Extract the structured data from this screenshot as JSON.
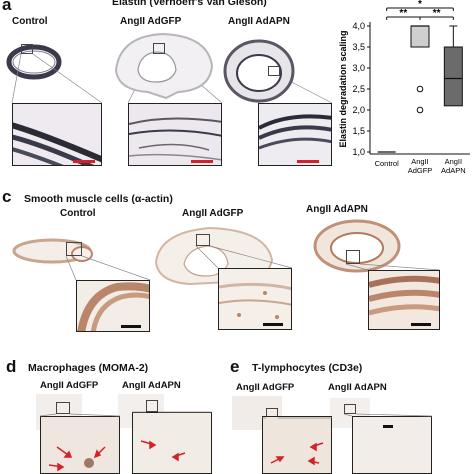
{
  "panel_a": {
    "letter": "a",
    "title": "Elastin (Verhoeff's Van Gieson)",
    "groups": [
      "Control",
      "AngII AdGFP",
      "AngII AdAPN"
    ]
  },
  "panel_c": {
    "letter": "c",
    "title": "Smooth muscle cells (α-actin)",
    "groups": [
      "Control",
      "AngII AdGFP",
      "AngII AdAPN"
    ]
  },
  "panel_d": {
    "letter": "d",
    "title": "Macrophages (MOMA-2)",
    "groups": [
      "AngII AdGFP",
      "AngII AdAPN"
    ]
  },
  "panel_e": {
    "letter": "e",
    "title": "T-lymphocytes  (CD3e)",
    "groups": [
      "AngII AdGFP",
      "AngII AdAPN"
    ]
  },
  "colors": {
    "elastin_stain": "#3a3a4a",
    "actin_stain": "#b9866b",
    "scale_red": "#d2232a",
    "box_light": "#cfcfcf",
    "box_dark": "#6b6b6b",
    "arrow": "#d2232a"
  },
  "chart_data": {
    "type": "box",
    "ylabel": "Elastin degradation scaling",
    "ylim": [
      1.0,
      4.0
    ],
    "yticks": [
      "1,0",
      "1,5",
      "2,0",
      "2,5",
      "3,0",
      "3,5",
      "4,0"
    ],
    "categories": [
      "Control",
      "AngII AdGFP",
      "AngII AdAPN"
    ],
    "boxes": [
      {
        "category": "Control",
        "min": 1.0,
        "q1": 1.0,
        "median": 1.0,
        "q3": 1.0,
        "max": 1.0,
        "outliers": []
      },
      {
        "category": "AngII AdGFP",
        "min": 3.5,
        "q1": 3.5,
        "median": 4.0,
        "q3": 4.0,
        "max": 4.0,
        "outliers": [
          2.5,
          2.0
        ]
      },
      {
        "category": "AngII AdAPN",
        "min": 2.1,
        "q1": 2.1,
        "median": 2.75,
        "q3": 3.5,
        "max": 4.0,
        "outliers": []
      }
    ],
    "significance": [
      {
        "from": "Control",
        "to": "AngII AdAPN",
        "label": "*"
      },
      {
        "from": "Control",
        "to": "AngII AdGFP",
        "label": "**"
      },
      {
        "from": "AngII AdGFP",
        "to": "AngII AdAPN",
        "label": "**"
      }
    ]
  }
}
